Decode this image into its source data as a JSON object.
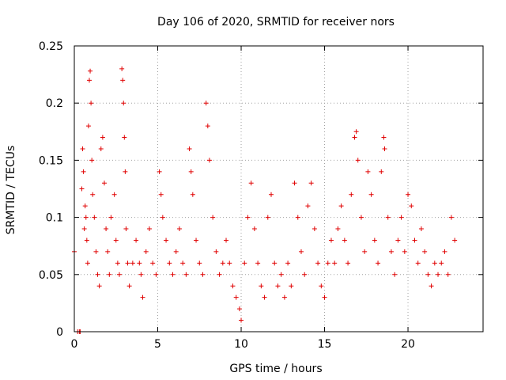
{
  "chart_data": {
    "type": "scatter",
    "title": "Day 106 of 2020, SRMTID for receiver nors",
    "xlabel": "GPS time / hours",
    "ylabel": "SRMTID / TECUs",
    "xlim": [
      0,
      24.5
    ],
    "ylim": [
      0,
      0.25
    ],
    "xticks": [
      0,
      5,
      10,
      15,
      20
    ],
    "xtick_labels": [
      "0",
      "5",
      "10",
      "15",
      "20"
    ],
    "yticks": [
      0,
      0.05,
      0.1,
      0.15,
      0.2,
      0.25
    ],
    "ytick_labels": [
      "0",
      "0.05",
      "0.1",
      "0.15",
      "0.2",
      "0.25"
    ],
    "grid": true,
    "marker": "+",
    "color": "#e00000",
    "series": [
      {
        "name": "SRMTID",
        "points": [
          [
            0.0,
            0.07
          ],
          [
            0.2,
            0.0
          ],
          [
            0.3,
            0.0
          ],
          [
            0.35,
            0.0
          ],
          [
            0.45,
            0.125
          ],
          [
            0.5,
            0.16
          ],
          [
            0.55,
            0.14
          ],
          [
            0.6,
            0.09
          ],
          [
            0.65,
            0.11
          ],
          [
            0.7,
            0.1
          ],
          [
            0.75,
            0.08
          ],
          [
            0.8,
            0.06
          ],
          [
            0.85,
            0.18
          ],
          [
            0.9,
            0.22
          ],
          [
            0.95,
            0.228
          ],
          [
            1.0,
            0.2
          ],
          [
            1.05,
            0.15
          ],
          [
            1.1,
            0.12
          ],
          [
            1.2,
            0.1
          ],
          [
            1.3,
            0.07
          ],
          [
            1.4,
            0.05
          ],
          [
            1.5,
            0.04
          ],
          [
            1.6,
            0.16
          ],
          [
            1.7,
            0.17
          ],
          [
            1.8,
            0.13
          ],
          [
            1.9,
            0.09
          ],
          [
            2.0,
            0.07
          ],
          [
            2.1,
            0.05
          ],
          [
            2.2,
            0.1
          ],
          [
            2.4,
            0.12
          ],
          [
            2.5,
            0.08
          ],
          [
            2.6,
            0.06
          ],
          [
            2.7,
            0.05
          ],
          [
            2.85,
            0.23
          ],
          [
            2.9,
            0.22
          ],
          [
            2.95,
            0.2
          ],
          [
            3.0,
            0.17
          ],
          [
            3.05,
            0.14
          ],
          [
            3.1,
            0.09
          ],
          [
            3.2,
            0.06
          ],
          [
            3.3,
            0.04
          ],
          [
            3.5,
            0.06
          ],
          [
            3.7,
            0.08
          ],
          [
            3.9,
            0.06
          ],
          [
            4.0,
            0.05
          ],
          [
            4.1,
            0.03
          ],
          [
            4.3,
            0.07
          ],
          [
            4.5,
            0.09
          ],
          [
            4.7,
            0.06
          ],
          [
            4.9,
            0.05
          ],
          [
            5.1,
            0.14
          ],
          [
            5.2,
            0.12
          ],
          [
            5.3,
            0.1
          ],
          [
            5.5,
            0.08
          ],
          [
            5.7,
            0.06
          ],
          [
            5.9,
            0.05
          ],
          [
            6.1,
            0.07
          ],
          [
            6.3,
            0.09
          ],
          [
            6.5,
            0.06
          ],
          [
            6.7,
            0.05
          ],
          [
            6.9,
            0.16
          ],
          [
            7.0,
            0.14
          ],
          [
            7.1,
            0.12
          ],
          [
            7.3,
            0.08
          ],
          [
            7.5,
            0.06
          ],
          [
            7.7,
            0.05
          ],
          [
            7.9,
            0.2
          ],
          [
            8.0,
            0.18
          ],
          [
            8.1,
            0.15
          ],
          [
            8.3,
            0.1
          ],
          [
            8.5,
            0.07
          ],
          [
            8.7,
            0.05
          ],
          [
            8.9,
            0.06
          ],
          [
            9.1,
            0.08
          ],
          [
            9.3,
            0.06
          ],
          [
            9.5,
            0.04
          ],
          [
            9.7,
            0.03
          ],
          [
            9.9,
            0.02
          ],
          [
            10.0,
            0.01
          ],
          [
            10.2,
            0.06
          ],
          [
            10.4,
            0.1
          ],
          [
            10.6,
            0.13
          ],
          [
            10.8,
            0.09
          ],
          [
            11.0,
            0.06
          ],
          [
            11.2,
            0.04
          ],
          [
            11.4,
            0.03
          ],
          [
            11.6,
            0.1
          ],
          [
            11.8,
            0.12
          ],
          [
            12.0,
            0.06
          ],
          [
            12.2,
            0.04
          ],
          [
            12.4,
            0.05
          ],
          [
            12.6,
            0.03
          ],
          [
            12.8,
            0.06
          ],
          [
            13.0,
            0.04
          ],
          [
            13.2,
            0.13
          ],
          [
            13.4,
            0.1
          ],
          [
            13.6,
            0.07
          ],
          [
            13.8,
            0.05
          ],
          [
            14.0,
            0.11
          ],
          [
            14.2,
            0.13
          ],
          [
            14.4,
            0.09
          ],
          [
            14.6,
            0.06
          ],
          [
            14.8,
            0.04
          ],
          [
            15.0,
            0.03
          ],
          [
            15.2,
            0.06
          ],
          [
            15.4,
            0.08
          ],
          [
            15.6,
            0.06
          ],
          [
            15.8,
            0.09
          ],
          [
            16.0,
            0.11
          ],
          [
            16.2,
            0.08
          ],
          [
            16.4,
            0.06
          ],
          [
            16.6,
            0.12
          ],
          [
            16.8,
            0.17
          ],
          [
            16.9,
            0.175
          ],
          [
            17.0,
            0.15
          ],
          [
            17.2,
            0.1
          ],
          [
            17.4,
            0.07
          ],
          [
            17.6,
            0.14
          ],
          [
            17.8,
            0.12
          ],
          [
            18.0,
            0.08
          ],
          [
            18.2,
            0.06
          ],
          [
            18.4,
            0.14
          ],
          [
            18.55,
            0.17
          ],
          [
            18.6,
            0.16
          ],
          [
            18.8,
            0.1
          ],
          [
            19.0,
            0.07
          ],
          [
            19.2,
            0.05
          ],
          [
            19.4,
            0.08
          ],
          [
            19.6,
            0.1
          ],
          [
            19.8,
            0.07
          ],
          [
            20.0,
            0.12
          ],
          [
            20.2,
            0.11
          ],
          [
            20.4,
            0.08
          ],
          [
            20.6,
            0.06
          ],
          [
            20.8,
            0.09
          ],
          [
            21.0,
            0.07
          ],
          [
            21.2,
            0.05
          ],
          [
            21.4,
            0.04
          ],
          [
            21.6,
            0.06
          ],
          [
            21.8,
            0.05
          ],
          [
            22.0,
            0.06
          ],
          [
            22.2,
            0.07
          ],
          [
            22.4,
            0.05
          ],
          [
            22.6,
            0.1
          ],
          [
            22.8,
            0.08
          ]
        ]
      }
    ]
  }
}
